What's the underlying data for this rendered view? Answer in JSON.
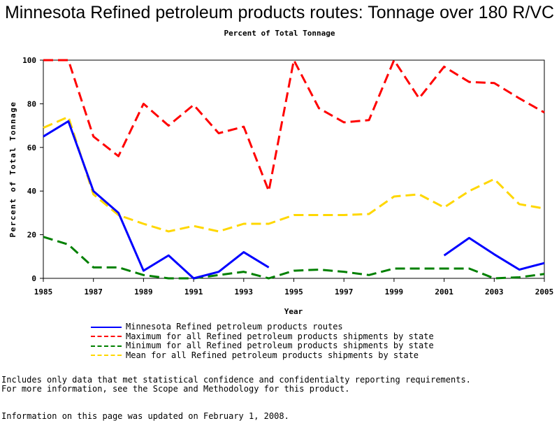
{
  "page": {
    "title": "Minnesota Refined petroleum products routes: Tonnage over 180 R/VC",
    "subtitle": "Percent of Total Tonnage",
    "notes": [
      "Includes only data that met statistical confidence and confidentialty reporting requirements.",
      "For more information, see the Scope and Methodology for this product."
    ],
    "updated": "Information on this page was updated on February 1, 2008."
  },
  "chart_data": {
    "type": "line",
    "xlabel": "Year",
    "ylabel": "Percent of Total Tonnage",
    "xlim": [
      1985,
      2005
    ],
    "ylim": [
      0,
      100
    ],
    "x_ticks": [
      1985,
      1987,
      1989,
      1991,
      1993,
      1995,
      1997,
      1999,
      2001,
      2003,
      2005
    ],
    "y_ticks": [
      0,
      20,
      40,
      60,
      80,
      100
    ],
    "legend_position": "bottom",
    "grid": false,
    "x": [
      1985,
      1986,
      1987,
      1988,
      1989,
      1990,
      1991,
      1992,
      1993,
      1994,
      1995,
      1996,
      1997,
      1998,
      1999,
      2000,
      2001,
      2002,
      2003,
      2004,
      2005
    ],
    "series": [
      {
        "name": "Minnesota Refined petroleum products routes",
        "color": "#0000ff",
        "dash": "solid",
        "values": [
          65,
          72,
          40,
          30,
          3.5,
          10.5,
          0,
          3,
          12,
          5,
          null,
          null,
          null,
          null,
          null,
          null,
          10.5,
          18.5,
          11,
          4,
          7
        ]
      },
      {
        "name": "Maximum for all Refined petroleum products shipments by state",
        "color": "#ff0000",
        "dash": "dashed",
        "values": [
          100,
          100,
          65,
          56,
          80,
          70,
          79.5,
          66.5,
          69.5,
          40,
          100,
          78,
          71.5,
          72.5,
          100,
          82.5,
          97,
          90,
          89.5,
          82.5,
          76
        ]
      },
      {
        "name": "Minimum for all Refined petroleum products shipments by state",
        "color": "#008000",
        "dash": "dashed",
        "values": [
          19,
          15.5,
          5,
          5,
          1.5,
          0,
          0,
          1.5,
          3,
          0,
          3.5,
          4,
          3,
          1.5,
          4.5,
          4.5,
          4.5,
          4.5,
          0,
          0.5,
          2
        ]
      },
      {
        "name": "Mean for all Refined petroleum products shipments by state",
        "color": "#ffd700",
        "dash": "dashed",
        "values": [
          69,
          74,
          38.5,
          29,
          25,
          21.5,
          24,
          21.5,
          25,
          25,
          29,
          29,
          29,
          29.5,
          37.5,
          38.5,
          32.5,
          40,
          45.5,
          34,
          32
        ]
      }
    ]
  }
}
